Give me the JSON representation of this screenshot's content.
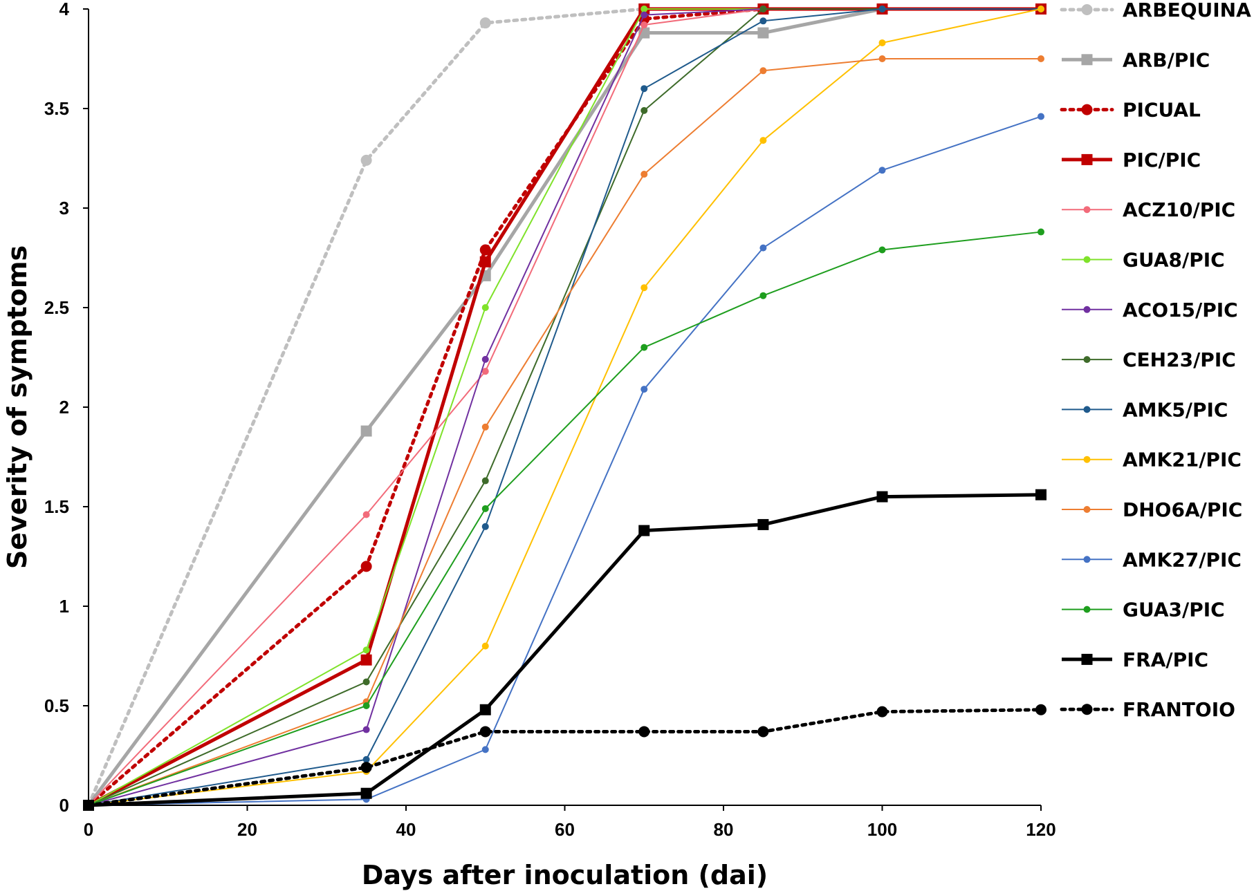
{
  "chart_data": {
    "type": "line",
    "title": "",
    "xlabel": "Days after inoculation (dai)",
    "ylabel": "Severity of symptoms",
    "xlim": [
      0,
      120
    ],
    "ylim": [
      0,
      4
    ],
    "x_ticks": [
      0,
      20,
      40,
      60,
      80,
      100,
      120
    ],
    "y_ticks": [
      0,
      0.5,
      1,
      1.5,
      2,
      2.5,
      3,
      3.5,
      4
    ],
    "x_tick_labels": [
      "0",
      "20",
      "40",
      "60",
      "80",
      "100",
      "120"
    ],
    "y_tick_labels": [
      "0",
      "0.5",
      "1",
      "1.5",
      "2",
      "2.5",
      "3",
      "3.5",
      "4"
    ],
    "grid": false,
    "legend_position": "right",
    "series": [
      {
        "name": "ARBEQUINA",
        "color": "#BFBFBF",
        "dash": "dotted",
        "marker": "circle",
        "width": "thick",
        "x": [
          0,
          35,
          50,
          70,
          85,
          100,
          120
        ],
        "y": [
          0,
          3.24,
          3.93,
          4.0,
          4.0,
          4.0,
          4.0
        ]
      },
      {
        "name": "ARB/PIC",
        "color": "#A6A6A6",
        "dash": "solid",
        "marker": "square",
        "width": "thick",
        "x": [
          0,
          35,
          50,
          70,
          85,
          100,
          120
        ],
        "y": [
          0,
          1.88,
          2.66,
          3.88,
          3.88,
          4.0,
          4.0
        ]
      },
      {
        "name": "PICUAL",
        "color": "#C00000",
        "dash": "dotted",
        "marker": "circle",
        "width": "thick",
        "x": [
          0,
          35,
          50,
          70,
          85,
          100,
          120
        ],
        "y": [
          0,
          1.2,
          2.79,
          3.95,
          4.0,
          4.0,
          4.0
        ]
      },
      {
        "name": "PIC/PIC",
        "color": "#C00000",
        "dash": "solid",
        "marker": "square",
        "width": "thick",
        "x": [
          0,
          35,
          50,
          70,
          85,
          100,
          120
        ],
        "y": [
          0,
          0.73,
          2.73,
          4.0,
          4.0,
          4.0,
          4.0
        ]
      },
      {
        "name": "ACZ10/PIC",
        "color": "#F26B7A",
        "dash": "solid",
        "marker": "dot",
        "width": "thin",
        "x": [
          0,
          35,
          50,
          70,
          85,
          100,
          120
        ],
        "y": [
          0,
          1.46,
          2.18,
          3.92,
          4.0,
          4.0,
          4.0
        ]
      },
      {
        "name": "GUA8/PIC",
        "color": "#7FE22A",
        "dash": "solid",
        "marker": "dot",
        "width": "thin",
        "x": [
          0,
          35,
          50,
          70,
          85,
          100,
          120
        ],
        "y": [
          0,
          0.78,
          2.5,
          4.0,
          4.0,
          4.0,
          4.0
        ]
      },
      {
        "name": "ACO15/PIC",
        "color": "#7030A0",
        "dash": "solid",
        "marker": "dot",
        "width": "thin",
        "x": [
          0,
          35,
          50,
          70,
          85,
          100,
          120
        ],
        "y": [
          0,
          0.38,
          2.24,
          3.97,
          4.0,
          4.0,
          4.0
        ]
      },
      {
        "name": "CEH23/PIC",
        "color": "#3E6B2A",
        "dash": "solid",
        "marker": "dot",
        "width": "thin",
        "x": [
          0,
          35,
          50,
          70,
          85,
          100,
          120
        ],
        "y": [
          0,
          0.62,
          1.63,
          3.49,
          4.0,
          4.0,
          4.0
        ]
      },
      {
        "name": "AMK5/PIC",
        "color": "#1F5A8C",
        "dash": "solid",
        "marker": "dot",
        "width": "thin",
        "x": [
          0,
          35,
          50,
          70,
          85,
          100,
          120
        ],
        "y": [
          0,
          0.23,
          1.4,
          3.6,
          3.94,
          4.0,
          4.0
        ]
      },
      {
        "name": "AMK21/PIC",
        "color": "#FFC000",
        "dash": "solid",
        "marker": "dot",
        "width": "thin",
        "x": [
          0,
          35,
          50,
          70,
          85,
          100,
          120
        ],
        "y": [
          0,
          0.17,
          0.8,
          2.6,
          3.34,
          3.83,
          4.0
        ]
      },
      {
        "name": "DHO6A/PIC",
        "color": "#ED7D31",
        "dash": "solid",
        "marker": "dot",
        "width": "thin",
        "x": [
          0,
          35,
          50,
          70,
          85,
          100,
          120
        ],
        "y": [
          0,
          0.52,
          1.9,
          3.17,
          3.69,
          3.75,
          3.75
        ]
      },
      {
        "name": "AMK27/PIC",
        "color": "#4472C4",
        "dash": "solid",
        "marker": "dot",
        "width": "thin",
        "x": [
          0,
          35,
          50,
          70,
          85,
          100,
          120
        ],
        "y": [
          0,
          0.03,
          0.28,
          2.09,
          2.8,
          3.19,
          3.46
        ]
      },
      {
        "name": "GUA3/PIC",
        "color": "#1E9E1E",
        "dash": "solid",
        "marker": "dot",
        "width": "thin",
        "x": [
          0,
          35,
          50,
          70,
          85,
          100,
          120
        ],
        "y": [
          0,
          0.5,
          1.49,
          2.3,
          2.56,
          2.79,
          2.88
        ]
      },
      {
        "name": "FRA/PIC",
        "color": "#000000",
        "dash": "solid",
        "marker": "square",
        "width": "thick",
        "x": [
          0,
          35,
          50,
          70,
          85,
          100,
          120
        ],
        "y": [
          0,
          0.06,
          0.48,
          1.38,
          1.41,
          1.55,
          1.56
        ]
      },
      {
        "name": "FRANTOIO",
        "color": "#000000",
        "dash": "dotted",
        "marker": "circle",
        "width": "thick",
        "x": [
          0,
          35,
          50,
          70,
          85,
          100,
          120
        ],
        "y": [
          0,
          0.19,
          0.37,
          0.37,
          0.37,
          0.47,
          0.48
        ]
      }
    ]
  }
}
